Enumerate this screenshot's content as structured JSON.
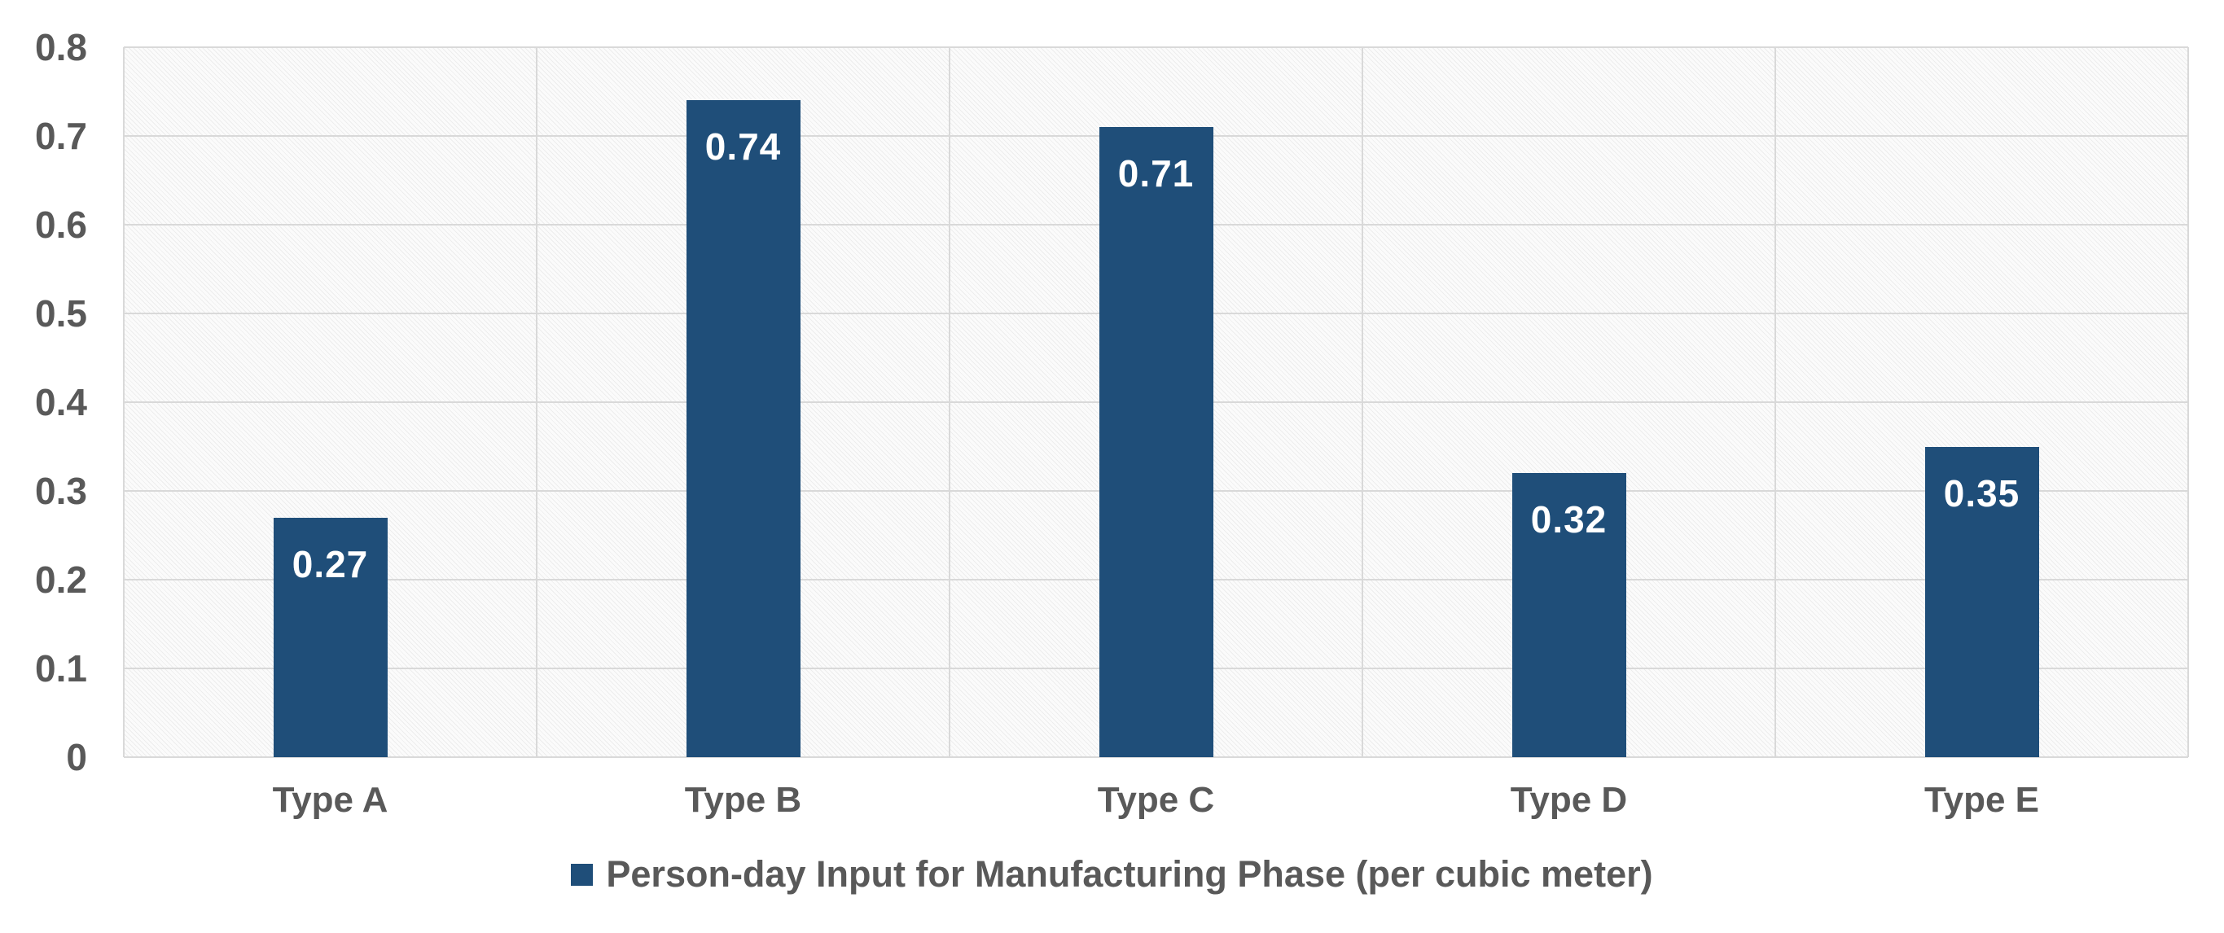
{
  "chart_data": {
    "type": "bar",
    "categories": [
      "Type A",
      "Type B",
      "Type C",
      "Type D",
      "Type E"
    ],
    "values": [
      0.27,
      0.74,
      0.71,
      0.32,
      0.35
    ],
    "value_labels": [
      "0.27",
      "0.74",
      "0.71",
      "0.32",
      "0.35"
    ],
    "series_label": "Person-day Input for Manufacturing Phase (per cubic meter)",
    "title": "",
    "xlabel": "",
    "ylabel": "",
    "ylim": [
      0,
      0.8
    ],
    "ytick_step": 0.1,
    "ytick_labels": [
      "0",
      "0.1",
      "0.2",
      "0.3",
      "0.4",
      "0.5",
      "0.6",
      "0.7",
      "0.8"
    ],
    "grid": true,
    "legend_position": "bottom",
    "colors": {
      "bar": "#1F4E79",
      "value_label": "#FFFFFF",
      "axis_text": "#595959",
      "gridline": "#D9D9D9",
      "plot_background": "#F2F2F2",
      "page_background": "#FFFFFF"
    }
  }
}
